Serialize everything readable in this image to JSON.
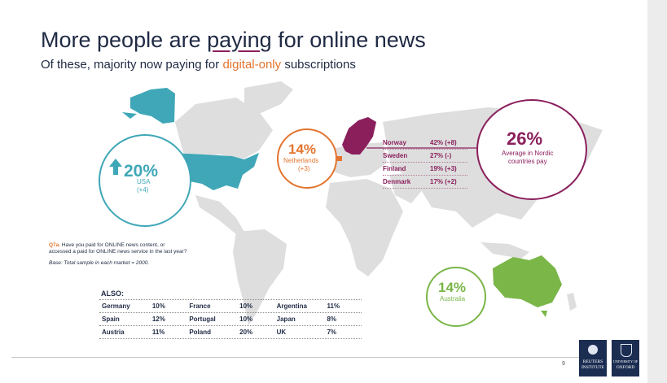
{
  "title": {
    "pre": "More people are ",
    "highlight": "paying",
    "post": " for online news"
  },
  "subtitle": {
    "pre": "Of these, majority now paying for ",
    "highlight": "digital-only",
    "post": " subscriptions"
  },
  "usa": {
    "value": "20%",
    "label": "USA",
    "change": "(+4)",
    "trend": "up-arrow-icon"
  },
  "netherlands": {
    "value": "14%",
    "label": "Netherlands",
    "change": "(+3)"
  },
  "nordic": {
    "rows": [
      {
        "country": "Norway",
        "value": "42% (+8)"
      },
      {
        "country": "Sweden",
        "value": "27% (-)"
      },
      {
        "country": "Finland",
        "value": "19% (+3)"
      },
      {
        "country": "Denmark",
        "value": "17% (+2)"
      }
    ],
    "average_value": "26%",
    "average_label_1": "Average in Nordic",
    "average_label_2": "countries pay"
  },
  "australia": {
    "value": "14%",
    "label": "Australia"
  },
  "question": {
    "tag": "Q7a.",
    "line1": "Have you paid for ONLINE news content, or",
    "line2": "accessed a paid for ONLINE news service in the last year?",
    "base": "Base: Total sample in each market = 2000."
  },
  "also": {
    "title": "ALSO:",
    "rows": [
      [
        {
          "c": "Germany",
          "v": "10%"
        },
        {
          "c": "France",
          "v": "10%"
        },
        {
          "c": "Argentina",
          "v": "11%"
        }
      ],
      [
        {
          "c": "Spain",
          "v": "12%"
        },
        {
          "c": "Portugal",
          "v": "10%"
        },
        {
          "c": "Japan",
          "v": "8%"
        }
      ],
      [
        {
          "c": "Austria",
          "v": "11%"
        },
        {
          "c": "Poland",
          "v": "20%"
        },
        {
          "c": "UK",
          "v": "7%"
        }
      ]
    ]
  },
  "footer": {
    "page": "9",
    "logo1_line1": "REUTERS",
    "logo1_line2": "INSTITUTE",
    "logo2_line1": "UNIVERSITY OF",
    "logo2_line2": "OXFORD"
  },
  "colors": {
    "navy": "#1f2a44",
    "teal": "#3fa7b7",
    "orange": "#e3742f",
    "purple": "#8a1f5c",
    "green": "#7ab648",
    "map_grey": "#dedede"
  }
}
